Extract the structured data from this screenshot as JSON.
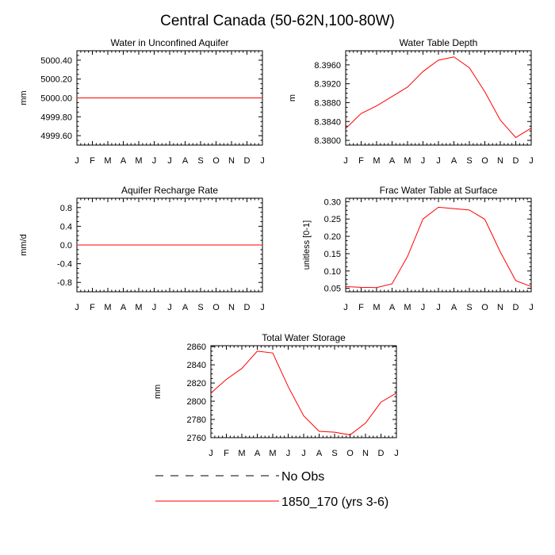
{
  "figure_title": "Central Canada (50-62N,100-80W)",
  "colors": {
    "model": "#ff0000",
    "obs": "#000000",
    "axis": "#000000"
  },
  "legend": {
    "obs_label": "No Obs",
    "model_label": "1850_170 (yrs 3-6)"
  },
  "chart_data": [
    {
      "type": "line",
      "title": "Water in Unconfined Aquifer",
      "ylabel": "mm",
      "xlabel": "",
      "categories": [
        "J",
        "F",
        "M",
        "A",
        "M",
        "J",
        "J",
        "A",
        "S",
        "O",
        "N",
        "D",
        "J"
      ],
      "ylim": [
        4999.5,
        5000.5
      ],
      "yticks": [
        4999.6,
        4999.8,
        5000.0,
        5000.2,
        5000.4
      ],
      "ytick_labels": [
        "4999.60",
        "4999.80",
        "5000.00",
        "5000.20",
        "5000.40"
      ],
      "series": [
        {
          "name": "1850_170 (yrs 3-6)",
          "values": [
            5000,
            5000,
            5000,
            5000,
            5000,
            5000,
            5000,
            5000,
            5000,
            5000,
            5000,
            5000,
            5000
          ]
        }
      ]
    },
    {
      "type": "line",
      "title": "Water Table Depth",
      "ylabel": "m",
      "xlabel": "",
      "categories": [
        "J",
        "F",
        "M",
        "A",
        "M",
        "J",
        "J",
        "A",
        "S",
        "O",
        "N",
        "D",
        "J"
      ],
      "ylim": [
        8.379,
        8.399
      ],
      "yticks": [
        8.38,
        8.384,
        8.388,
        8.392,
        8.396
      ],
      "ytick_labels": [
        "8.3800",
        "8.3840",
        "8.3880",
        "8.3920",
        "8.3960"
      ],
      "series": [
        {
          "name": "1850_170 (yrs 3-6)",
          "values": [
            8.3825,
            8.3857,
            8.3873,
            8.3893,
            8.3913,
            8.3946,
            8.397,
            8.3977,
            8.3954,
            8.3903,
            8.3843,
            8.3806,
            8.3826
          ]
        }
      ]
    },
    {
      "type": "line",
      "title": "Aquifer Recharge Rate",
      "ylabel": "mm/d",
      "xlabel": "",
      "categories": [
        "J",
        "F",
        "M",
        "A",
        "M",
        "J",
        "J",
        "A",
        "S",
        "O",
        "N",
        "D",
        "J"
      ],
      "ylim": [
        -1.0,
        1.0
      ],
      "yticks": [
        -0.8,
        -0.4,
        0.0,
        0.4,
        0.8
      ],
      "ytick_labels": [
        "-0.8",
        "-0.4",
        "0.0",
        "0.4",
        "0.8"
      ],
      "series": [
        {
          "name": "1850_170 (yrs 3-6)",
          "values": [
            0,
            0,
            0,
            0,
            0,
            0,
            0,
            0,
            0,
            0,
            0,
            0,
            0
          ]
        }
      ]
    },
    {
      "type": "line",
      "title": "Frac Water Table at Surface",
      "ylabel": "unitless [0-1]",
      "xlabel": "",
      "categories": [
        "J",
        "F",
        "M",
        "A",
        "M",
        "J",
        "J",
        "A",
        "S",
        "O",
        "N",
        "D",
        "J"
      ],
      "ylim": [
        0.04,
        0.31
      ],
      "yticks": [
        0.05,
        0.1,
        0.15,
        0.2,
        0.25,
        0.3
      ],
      "ytick_labels": [
        "0.05",
        "0.10",
        "0.15",
        "0.20",
        "0.25",
        "0.30"
      ],
      "series": [
        {
          "name": "1850_170 (yrs 3-6)",
          "values": [
            0.055,
            0.053,
            0.052,
            0.063,
            0.142,
            0.25,
            0.284,
            0.28,
            0.276,
            0.249,
            0.155,
            0.072,
            0.055
          ]
        }
      ]
    },
    {
      "type": "line",
      "title": "Total Water Storage",
      "ylabel": "mm",
      "xlabel": "",
      "categories": [
        "J",
        "F",
        "M",
        "A",
        "M",
        "J",
        "J",
        "A",
        "S",
        "O",
        "N",
        "D",
        "J"
      ],
      "ylim": [
        2760,
        2861
      ],
      "yticks": [
        2760,
        2780,
        2800,
        2820,
        2840,
        2860
      ],
      "ytick_labels": [
        "2760",
        "2780",
        "2800",
        "2820",
        "2840",
        "2860"
      ],
      "series": [
        {
          "name": "1850_170 (yrs 3-6)",
          "values": [
            2809,
            2824,
            2836,
            2855,
            2853,
            2816,
            2784,
            2767,
            2766,
            2763,
            2776,
            2799,
            2809
          ]
        }
      ]
    }
  ]
}
